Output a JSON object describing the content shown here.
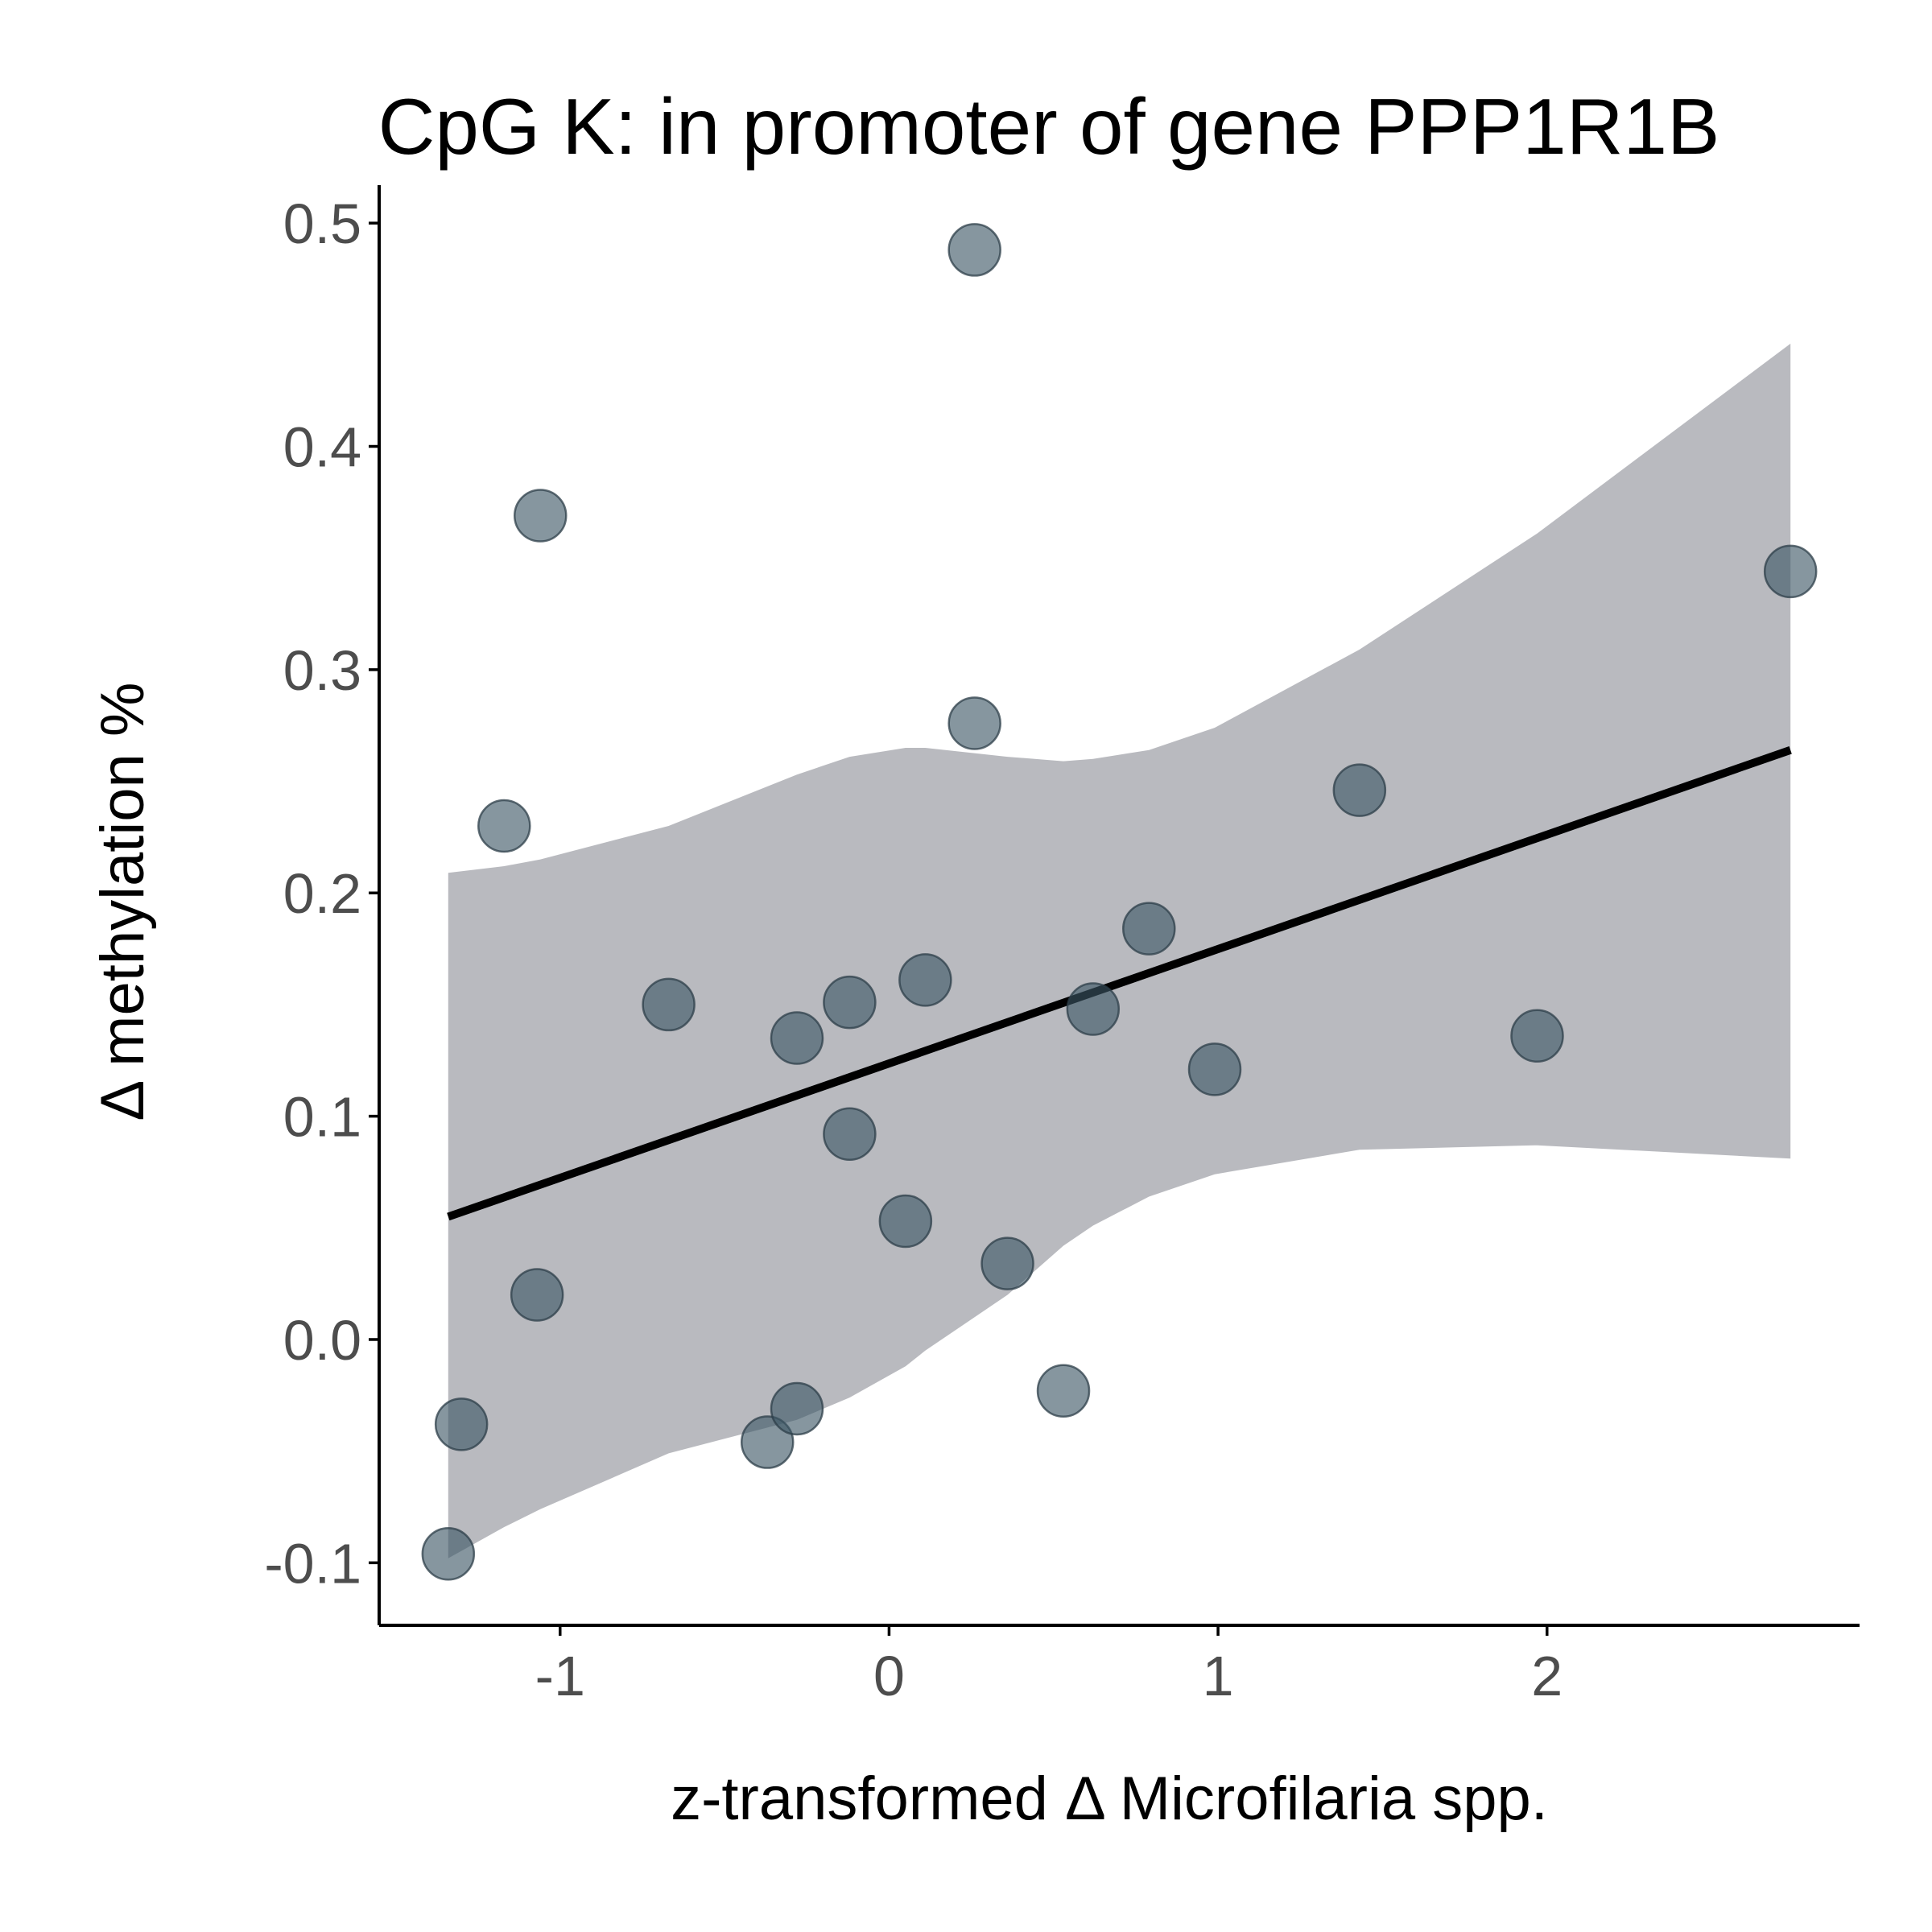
{
  "chart_data": {
    "type": "scatter",
    "title": "CpG K: in promoter of gene PPP1R1B",
    "xlabel": "z-transformed Δ Microfilaria spp.",
    "ylabel": "Δ methylation %",
    "xlim": [
      -1.55,
      2.95
    ],
    "ylim": [
      -0.128,
      0.517
    ],
    "x_ticks": [
      {
        "value": -1,
        "label": "-1"
      },
      {
        "value": 0,
        "label": "0"
      },
      {
        "value": 1,
        "label": "1"
      },
      {
        "value": 2,
        "label": "2"
      }
    ],
    "y_ticks": [
      {
        "value": -0.1,
        "label": "-0.1"
      },
      {
        "value": 0.0,
        "label": "0.0"
      },
      {
        "value": 0.1,
        "label": "0.1"
      },
      {
        "value": 0.2,
        "label": "0.2"
      },
      {
        "value": 0.3,
        "label": "0.3"
      },
      {
        "value": 0.4,
        "label": "0.4"
      },
      {
        "value": 0.5,
        "label": "0.5"
      }
    ],
    "grid": false,
    "points": [
      {
        "x": -1.34,
        "y": -0.096
      },
      {
        "x": -1.3,
        "y": -0.038
      },
      {
        "x": -1.07,
        "y": 0.02
      },
      {
        "x": -1.06,
        "y": 0.369
      },
      {
        "x": -1.17,
        "y": 0.23
      },
      {
        "x": -0.67,
        "y": 0.15
      },
      {
        "x": -0.37,
        "y": -0.046
      },
      {
        "x": -0.28,
        "y": -0.031
      },
      {
        "x": -0.28,
        "y": 0.135
      },
      {
        "x": -0.12,
        "y": 0.151
      },
      {
        "x": -0.12,
        "y": 0.092
      },
      {
        "x": 0.05,
        "y": 0.053
      },
      {
        "x": 0.11,
        "y": 0.161
      },
      {
        "x": 0.26,
        "y": 0.488
      },
      {
        "x": 0.26,
        "y": 0.276
      },
      {
        "x": 0.36,
        "y": 0.034
      },
      {
        "x": 0.53,
        "y": -0.023
      },
      {
        "x": 0.62,
        "y": 0.148
      },
      {
        "x": 0.79,
        "y": 0.184
      },
      {
        "x": 0.99,
        "y": 0.121
      },
      {
        "x": 1.43,
        "y": 0.246
      },
      {
        "x": 1.97,
        "y": 0.136
      },
      {
        "x": 2.74,
        "y": 0.344
      }
    ],
    "fit_line": {
      "x": [
        -1.34,
        2.74
      ],
      "y": [
        0.055,
        0.264
      ]
    },
    "confidence_band": {
      "x": [
        -1.34,
        -1.17,
        -1.06,
        -0.67,
        -0.28,
        -0.12,
        0.05,
        0.11,
        0.36,
        0.53,
        0.62,
        0.79,
        0.99,
        1.43,
        1.97,
        2.74
      ],
      "lower": [
        -0.098,
        -0.084,
        -0.076,
        -0.051,
        -0.036,
        -0.026,
        -0.012,
        -0.005,
        0.02,
        0.042,
        0.051,
        0.064,
        0.074,
        0.085,
        0.087,
        0.081
      ],
      "upper": [
        0.209,
        0.212,
        0.215,
        0.23,
        0.253,
        0.261,
        0.265,
        0.265,
        0.261,
        0.259,
        0.26,
        0.264,
        0.274,
        0.309,
        0.361,
        0.446
      ]
    },
    "colors": {
      "point_fill": "#3b5664",
      "point_stroke": "#2c3e48",
      "band_fill": "#b9babf",
      "fit_line": "#000000"
    }
  }
}
